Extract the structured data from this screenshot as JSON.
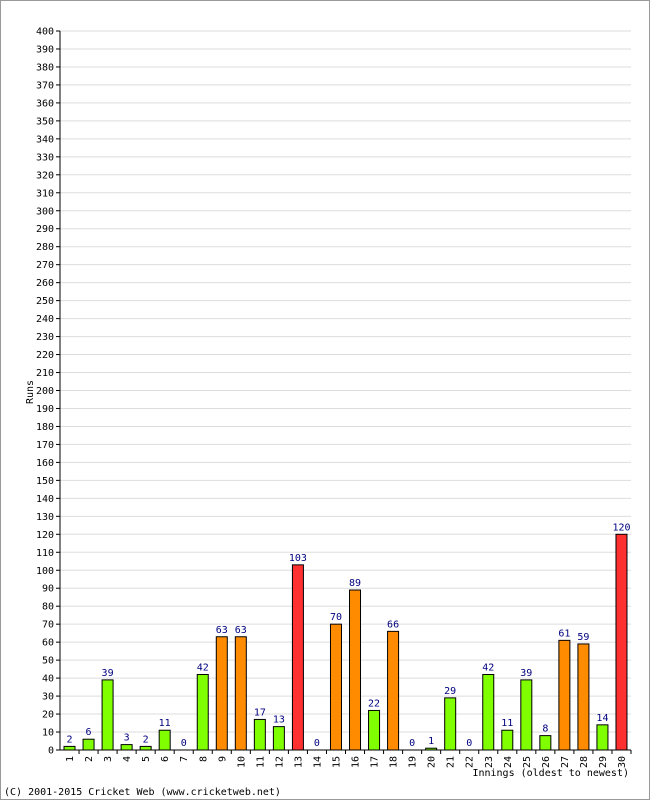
{
  "chart_data": {
    "type": "bar",
    "y_label": "Runs",
    "x_label": "Innings (oldest to newest)",
    "footer": "(C) 2001-2015 Cricket Web (www.cricketweb.net)",
    "categories": [
      "1",
      "2",
      "3",
      "4",
      "5",
      "6",
      "7",
      "8",
      "9",
      "10",
      "11",
      "12",
      "13",
      "14",
      "15",
      "16",
      "17",
      "18",
      "19",
      "20",
      "21",
      "22",
      "23",
      "24",
      "25",
      "26",
      "27",
      "28",
      "29",
      "30"
    ],
    "values": [
      2,
      6,
      39,
      3,
      2,
      11,
      0,
      42,
      63,
      63,
      17,
      13,
      103,
      0,
      70,
      89,
      22,
      66,
      0,
      1,
      29,
      0,
      42,
      11,
      39,
      8,
      61,
      59,
      14,
      120
    ],
    "colors": [
      "#80ff00",
      "#80ff00",
      "#80ff00",
      "#80ff00",
      "#80ff00",
      "#80ff00",
      "#80ff00",
      "#80ff00",
      "#ff8c00",
      "#ff8c00",
      "#80ff00",
      "#80ff00",
      "#ff3030",
      "#80ff00",
      "#ff8c00",
      "#ff8c00",
      "#80ff00",
      "#ff8c00",
      "#80ff00",
      "#80ff00",
      "#80ff00",
      "#80ff00",
      "#80ff00",
      "#80ff00",
      "#80ff00",
      "#80ff00",
      "#ff8c00",
      "#ff8c00",
      "#80ff00",
      "#ff3030"
    ],
    "ylim": [
      0,
      400
    ],
    "yticks": [
      0,
      10,
      20,
      30,
      40,
      50,
      60,
      70,
      80,
      90,
      100,
      110,
      120,
      130,
      140,
      150,
      160,
      170,
      180,
      190,
      200,
      210,
      220,
      230,
      240,
      250,
      260,
      270,
      280,
      290,
      300,
      310,
      320,
      330,
      340,
      350,
      360,
      370,
      380,
      390,
      400
    ],
    "grid": true
  }
}
